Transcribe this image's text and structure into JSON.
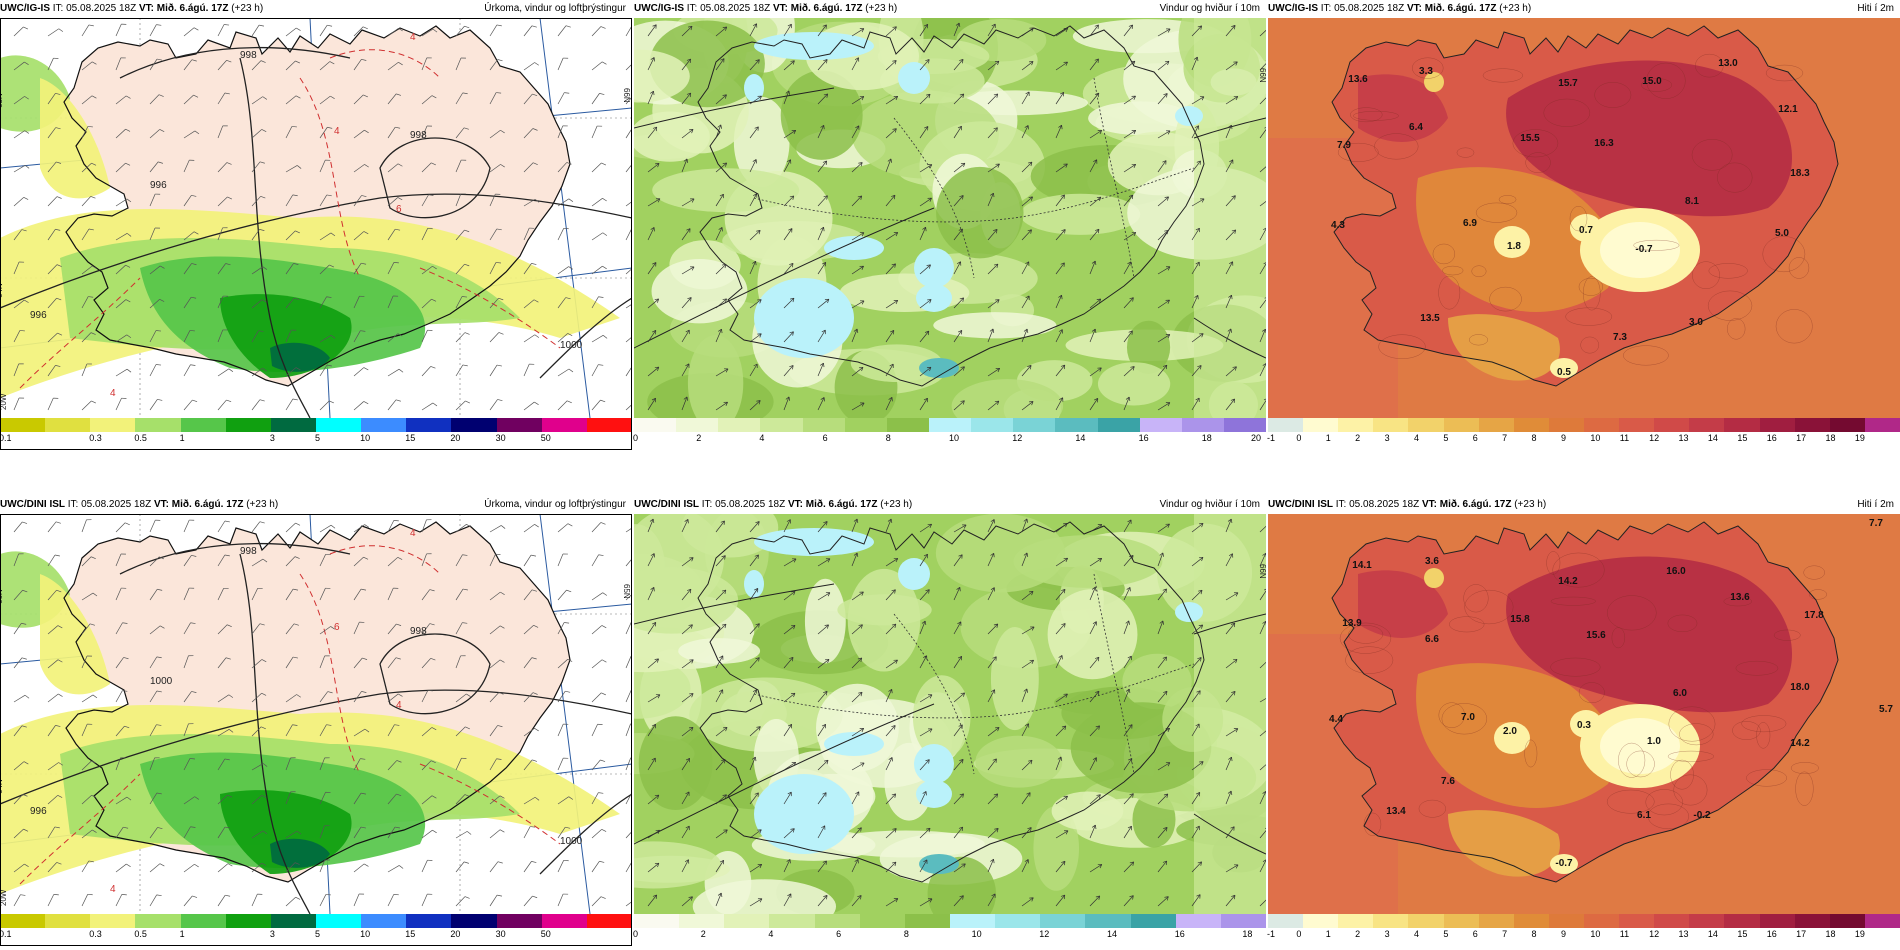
{
  "panels": [
    {
      "id": "top-precip",
      "model": "UWC/IG-IS",
      "issue_label": "IT:",
      "issue_time": "05.08.2025 18Z",
      "valid_label": "VT:",
      "valid_time": "Mið. 6.ágú. 17Z",
      "lead": "(+23 h)",
      "title": "Úrkoma, vindur og loftþrýstingur",
      "type": "precip",
      "colorbar": {
        "colors": [
          "#c9c900",
          "#e0e040",
          "#f2f27a",
          "#a6e06a",
          "#56c64a",
          "#10a010",
          "#006a40",
          "#00ffff",
          "#3c8cff",
          "#1030c0",
          "#000070",
          "#700060",
          "#e0008c",
          "#ff1010"
        ],
        "ticks": [
          "0.1",
          "0.3",
          "0.5",
          "1",
          "3",
          "5",
          "10",
          "15",
          "20",
          "30",
          "50"
        ]
      },
      "iso_labels": [
        "998",
        "996",
        "1000",
        "998",
        "996"
      ],
      "red_labels": [
        "4",
        "4",
        "6",
        "4"
      ],
      "grid_labels": [
        "65N",
        "64N",
        "66N",
        "20W"
      ]
    },
    {
      "id": "top-wind",
      "model": "UWC/IG-IS",
      "issue_label": "IT:",
      "issue_time": "05.08.2025 18Z",
      "valid_label": "VT:",
      "valid_time": "Mið. 6.ágú. 17Z",
      "lead": "(+23 h)",
      "title": "Vindur og hviður í 10m",
      "type": "wind",
      "colorbar": {
        "colors": [
          "#fafaf0",
          "#f0f8d8",
          "#e2f2b8",
          "#cde99a",
          "#b7dd7c",
          "#a1d160",
          "#8cc04a",
          "#baf2fa",
          "#9be6ea",
          "#7ad3d6",
          "#5bbcbf",
          "#3aa3a6",
          "#c8b4f8",
          "#ab94ea",
          "#8e74da"
        ],
        "ticks": [
          "0",
          "2",
          "4",
          "6",
          "8",
          "10",
          "12",
          "14",
          "16",
          "18",
          "20"
        ]
      },
      "grid_labels": [
        "66N"
      ]
    },
    {
      "id": "top-temp",
      "model": "UWC/IG-IS",
      "issue_label": "IT:",
      "issue_time": "05.08.2025 18Z",
      "valid_label": "VT:",
      "valid_time": "Mið. 6.ágú. 17Z",
      "lead": "(+23 h)",
      "title": "Hiti í 2m",
      "type": "temp",
      "colorbar": {
        "colors": [
          "#dceae4",
          "#fffbd0",
          "#fdf2a6",
          "#f8e484",
          "#f2d26a",
          "#ecbd55",
          "#e6a545",
          "#e08c38",
          "#de7a3a",
          "#dd6a42",
          "#d95a48",
          "#d04a48",
          "#c43c48",
          "#b42c44",
          "#a01e40",
          "#8a1238",
          "#740a30",
          "#b02888"
        ],
        "ticks": [
          "-1",
          "0",
          "1",
          "2",
          "3",
          "4",
          "5",
          "6",
          "7",
          "8",
          "9",
          "10",
          "11",
          "12",
          "13",
          "14",
          "15",
          "16",
          "17",
          "18",
          "19"
        ]
      },
      "temps": [
        {
          "t": "13.6",
          "x": 90,
          "y": 64
        },
        {
          "t": "3.3",
          "x": 158,
          "y": 56
        },
        {
          "t": "15.7",
          "x": 300,
          "y": 68
        },
        {
          "t": "15.0",
          "x": 384,
          "y": 66
        },
        {
          "t": "13.0",
          "x": 460,
          "y": 48
        },
        {
          "t": "12.1",
          "x": 520,
          "y": 94
        },
        {
          "t": "6.4",
          "x": 148,
          "y": 112
        },
        {
          "t": "7.9",
          "x": 76,
          "y": 130
        },
        {
          "t": "15.5",
          "x": 262,
          "y": 123
        },
        {
          "t": "16.3",
          "x": 336,
          "y": 128
        },
        {
          "t": "18.3",
          "x": 532,
          "y": 158
        },
        {
          "t": "8.1",
          "x": 424,
          "y": 186
        },
        {
          "t": "4.3",
          "x": 70,
          "y": 210
        },
        {
          "t": "6.9",
          "x": 202,
          "y": 208
        },
        {
          "t": "0.7",
          "x": 318,
          "y": 215
        },
        {
          "t": "5.0",
          "x": 514,
          "y": 218
        },
        {
          "t": "1.8",
          "x": 246,
          "y": 231
        },
        {
          "t": "-0.7",
          "x": 376,
          "y": 234
        },
        {
          "t": "13.5",
          "x": 162,
          "y": 303
        },
        {
          "t": "3.0",
          "x": 428,
          "y": 307
        },
        {
          "t": "7.3",
          "x": 352,
          "y": 322
        },
        {
          "t": "0.5",
          "x": 296,
          "y": 357
        }
      ]
    },
    {
      "id": "bot-precip",
      "model": "UWC/DINI ISL",
      "issue_label": "IT:",
      "issue_time": "05.08.2025 18Z",
      "valid_label": "VT:",
      "valid_time": "Mið. 6.ágú. 17Z",
      "lead": "(+23 h)",
      "title": "Úrkoma, vindur og loftþrýstingur",
      "type": "precip",
      "colorbar": {
        "colors": [
          "#c9c900",
          "#e0e040",
          "#f2f27a",
          "#a6e06a",
          "#56c64a",
          "#10a010",
          "#006a40",
          "#00ffff",
          "#3c8cff",
          "#1030c0",
          "#000070",
          "#700060",
          "#e0008c",
          "#ff1010"
        ],
        "ticks": [
          "0.1",
          "0.3",
          "0.5",
          "1",
          "3",
          "5",
          "10",
          "15",
          "20",
          "30",
          "50"
        ]
      },
      "iso_labels": [
        "998",
        "996",
        "1000",
        "998",
        "1000"
      ],
      "red_labels": [
        "4",
        "6",
        "4",
        "4"
      ],
      "grid_labels": [
        "66N",
        "64N",
        "65N",
        "20W"
      ]
    },
    {
      "id": "bot-wind",
      "model": "UWC/DINI ISL",
      "issue_label": "IT:",
      "issue_time": "05.08.2025 18Z",
      "valid_label": "VT:",
      "valid_time": "Mið. 6.ágú. 17Z",
      "lead": "(+23 h)",
      "title": "Vindur og hviður í 10m",
      "type": "wind",
      "colorbar": {
        "colors": [
          "#fafaf0",
          "#f0f8d8",
          "#e2f2b8",
          "#cde99a",
          "#b7dd7c",
          "#a1d160",
          "#8cc04a",
          "#baf2fa",
          "#9be6ea",
          "#7ad3d6",
          "#5bbcbf",
          "#3aa3a6",
          "#c8b4f8",
          "#ab94ea"
        ],
        "ticks": [
          "0",
          "2",
          "4",
          "6",
          "8",
          "10",
          "12",
          "14",
          "16",
          "18"
        ]
      },
      "grid_labels": [
        "66N"
      ]
    },
    {
      "id": "bot-temp",
      "model": "UWC/DINI ISL",
      "issue_label": "IT:",
      "issue_time": "05.08.2025 18Z",
      "valid_label": "VT:",
      "valid_time": "Mið. 6.ágú. 17Z",
      "lead": "(+23 h)",
      "title": "Hiti í 2m",
      "type": "temp",
      "colorbar": {
        "colors": [
          "#dceae4",
          "#fffbd0",
          "#fdf2a6",
          "#f8e484",
          "#f2d26a",
          "#ecbd55",
          "#e6a545",
          "#e08c38",
          "#de7a3a",
          "#dd6a42",
          "#d95a48",
          "#d04a48",
          "#c43c48",
          "#b42c44",
          "#a01e40",
          "#8a1238",
          "#740a30",
          "#b02888"
        ],
        "ticks": [
          "-1",
          "0",
          "1",
          "2",
          "3",
          "4",
          "5",
          "6",
          "7",
          "8",
          "9",
          "10",
          "11",
          "12",
          "13",
          "14",
          "15",
          "16",
          "17",
          "18",
          "19"
        ]
      },
      "temps": [
        {
          "t": "7.7",
          "x": 608,
          "y": 12
        },
        {
          "t": "14.1",
          "x": 94,
          "y": 54
        },
        {
          "t": "3.6",
          "x": 164,
          "y": 50
        },
        {
          "t": "16.0",
          "x": 408,
          "y": 60
        },
        {
          "t": "14.2",
          "x": 300,
          "y": 70
        },
        {
          "t": "13.6",
          "x": 472,
          "y": 86
        },
        {
          "t": "17.8",
          "x": 546,
          "y": 104
        },
        {
          "t": "13.9",
          "x": 84,
          "y": 112
        },
        {
          "t": "15.8",
          "x": 252,
          "y": 108
        },
        {
          "t": "15.6",
          "x": 328,
          "y": 124
        },
        {
          "t": "6.6",
          "x": 164,
          "y": 128
        },
        {
          "t": "18.0",
          "x": 532,
          "y": 176
        },
        {
          "t": "6.0",
          "x": 412,
          "y": 182
        },
        {
          "t": "5.7",
          "x": 618,
          "y": 198
        },
        {
          "t": "4.4",
          "x": 68,
          "y": 208
        },
        {
          "t": "7.0",
          "x": 200,
          "y": 206
        },
        {
          "t": "0.3",
          "x": 316,
          "y": 214
        },
        {
          "t": "2.0",
          "x": 242,
          "y": 220
        },
        {
          "t": "1.0",
          "x": 386,
          "y": 230
        },
        {
          "t": "14.2",
          "x": 532,
          "y": 232
        },
        {
          "t": "7.6",
          "x": 180,
          "y": 270
        },
        {
          "t": "13.4",
          "x": 128,
          "y": 300
        },
        {
          "t": "6.1",
          "x": 376,
          "y": 304
        },
        {
          "t": "-0.2",
          "x": 434,
          "y": 304
        },
        {
          "t": "-0.7",
          "x": 296,
          "y": 352
        }
      ]
    }
  ]
}
